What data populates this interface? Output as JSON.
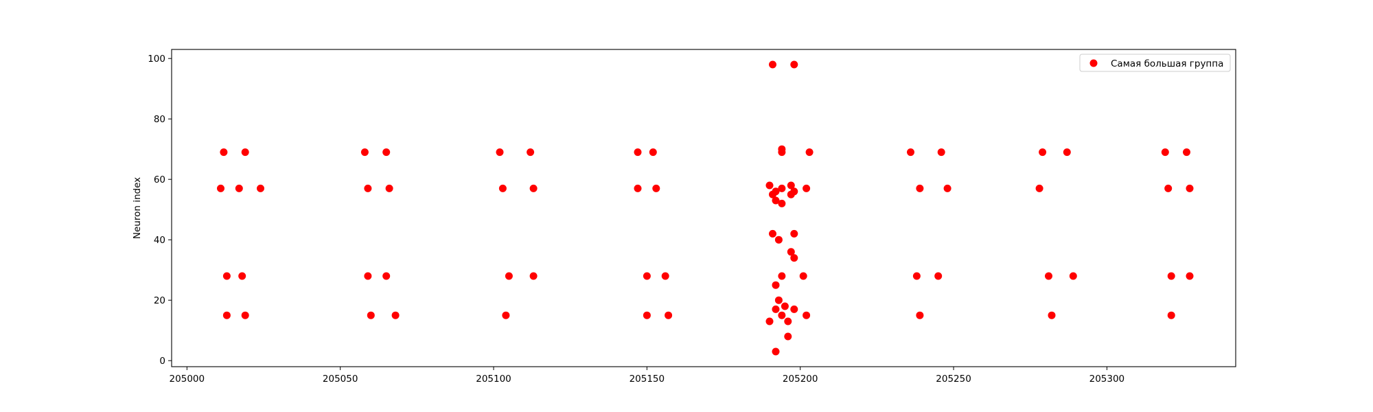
{
  "chart_data": {
    "type": "scatter",
    "xlabel": "",
    "ylabel": "Neuron index",
    "xlim": [
      204995,
      205342
    ],
    "ylim": [
      -2,
      103
    ],
    "x_ticks": [
      205000,
      205050,
      205100,
      205150,
      205200,
      205250,
      205300
    ],
    "y_ticks": [
      0,
      20,
      40,
      60,
      80,
      100
    ],
    "grid": false,
    "legend_position": "top-right",
    "colors": {
      "marker": "#ff0000",
      "axes": "#000000",
      "legend_border": "#cccccc"
    },
    "series": [
      {
        "name": "Самая большая группа",
        "points": [
          {
            "x": 205012,
            "y": 69
          },
          {
            "x": 205019,
            "y": 69
          },
          {
            "x": 205011,
            "y": 57
          },
          {
            "x": 205017,
            "y": 57
          },
          {
            "x": 205024,
            "y": 57
          },
          {
            "x": 205013,
            "y": 28
          },
          {
            "x": 205018,
            "y": 28
          },
          {
            "x": 205013,
            "y": 15
          },
          {
            "x": 205019,
            "y": 15
          },
          {
            "x": 205058,
            "y": 69
          },
          {
            "x": 205065,
            "y": 69
          },
          {
            "x": 205059,
            "y": 57
          },
          {
            "x": 205066,
            "y": 57
          },
          {
            "x": 205059,
            "y": 28
          },
          {
            "x": 205065,
            "y": 28
          },
          {
            "x": 205060,
            "y": 15
          },
          {
            "x": 205068,
            "y": 15
          },
          {
            "x": 205102,
            "y": 69
          },
          {
            "x": 205112,
            "y": 69
          },
          {
            "x": 205103,
            "y": 57
          },
          {
            "x": 205113,
            "y": 57
          },
          {
            "x": 205105,
            "y": 28
          },
          {
            "x": 205113,
            "y": 28
          },
          {
            "x": 205104,
            "y": 15
          },
          {
            "x": 205147,
            "y": 69
          },
          {
            "x": 205152,
            "y": 69
          },
          {
            "x": 205147,
            "y": 57
          },
          {
            "x": 205153,
            "y": 57
          },
          {
            "x": 205150,
            "y": 28
          },
          {
            "x": 205156,
            "y": 28
          },
          {
            "x": 205150,
            "y": 15
          },
          {
            "x": 205157,
            "y": 15
          },
          {
            "x": 205191,
            "y": 98
          },
          {
            "x": 205198,
            "y": 98
          },
          {
            "x": 205194,
            "y": 70
          },
          {
            "x": 205194,
            "y": 69
          },
          {
            "x": 205203,
            "y": 69
          },
          {
            "x": 205190,
            "y": 58
          },
          {
            "x": 205197,
            "y": 58
          },
          {
            "x": 205194,
            "y": 57
          },
          {
            "x": 205202,
            "y": 57
          },
          {
            "x": 205192,
            "y": 56
          },
          {
            "x": 205198,
            "y": 56
          },
          {
            "x": 205191,
            "y": 55
          },
          {
            "x": 205197,
            "y": 55
          },
          {
            "x": 205192,
            "y": 53
          },
          {
            "x": 205194,
            "y": 52
          },
          {
            "x": 205191,
            "y": 42
          },
          {
            "x": 205198,
            "y": 42
          },
          {
            "x": 205193,
            "y": 40
          },
          {
            "x": 205197,
            "y": 36
          },
          {
            "x": 205198,
            "y": 34
          },
          {
            "x": 205194,
            "y": 28
          },
          {
            "x": 205201,
            "y": 28
          },
          {
            "x": 205192,
            "y": 25
          },
          {
            "x": 205193,
            "y": 20
          },
          {
            "x": 205195,
            "y": 18
          },
          {
            "x": 205192,
            "y": 17
          },
          {
            "x": 205198,
            "y": 17
          },
          {
            "x": 205194,
            "y": 15
          },
          {
            "x": 205202,
            "y": 15
          },
          {
            "x": 205190,
            "y": 13
          },
          {
            "x": 205196,
            "y": 13
          },
          {
            "x": 205196,
            "y": 8
          },
          {
            "x": 205192,
            "y": 3
          },
          {
            "x": 205236,
            "y": 69
          },
          {
            "x": 205246,
            "y": 69
          },
          {
            "x": 205239,
            "y": 57
          },
          {
            "x": 205248,
            "y": 57
          },
          {
            "x": 205238,
            "y": 28
          },
          {
            "x": 205245,
            "y": 28
          },
          {
            "x": 205239,
            "y": 15
          },
          {
            "x": 205279,
            "y": 69
          },
          {
            "x": 205287,
            "y": 69
          },
          {
            "x": 205278,
            "y": 57
          },
          {
            "x": 205281,
            "y": 28
          },
          {
            "x": 205289,
            "y": 28
          },
          {
            "x": 205282,
            "y": 15
          },
          {
            "x": 205319,
            "y": 69
          },
          {
            "x": 205326,
            "y": 69
          },
          {
            "x": 205320,
            "y": 57
          },
          {
            "x": 205327,
            "y": 57
          },
          {
            "x": 205321,
            "y": 28
          },
          {
            "x": 205327,
            "y": 28
          },
          {
            "x": 205321,
            "y": 15
          }
        ]
      }
    ]
  }
}
